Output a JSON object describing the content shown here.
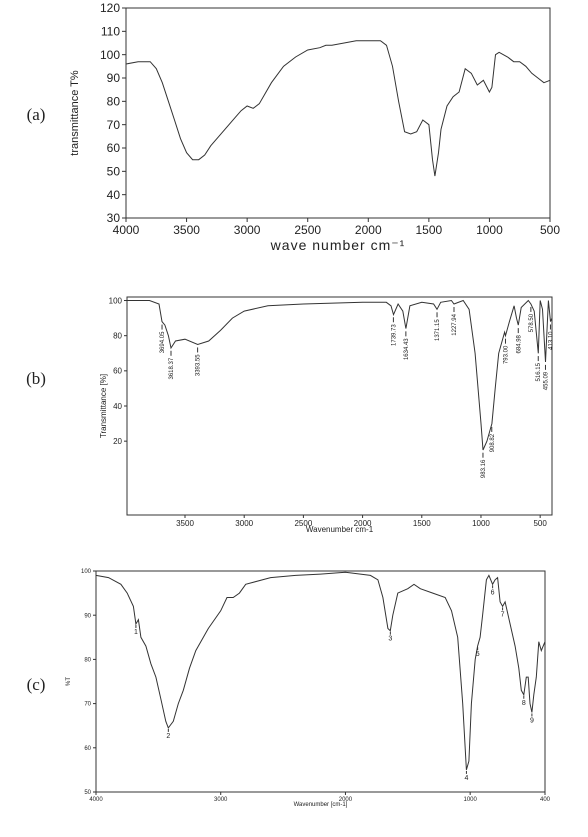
{
  "chart_data": [
    {
      "type": "line",
      "panel_label": "(a)",
      "xlabel": "wave number cm⁻¹",
      "ylabel": "transmittance T%",
      "color": "#333333",
      "xlim": [
        4000,
        500
      ],
      "xticks": [
        4000,
        3500,
        3000,
        2500,
        2000,
        1500,
        1000,
        500
      ],
      "ylim": [
        30,
        120
      ],
      "yticks": [
        30,
        40,
        50,
        60,
        70,
        80,
        90,
        100,
        110,
        120
      ],
      "x": [
        4000,
        3900,
        3800,
        3750,
        3700,
        3650,
        3600,
        3550,
        3500,
        3450,
        3400,
        3350,
        3300,
        3200,
        3100,
        3050,
        3000,
        2950,
        2900,
        2800,
        2700,
        2600,
        2500,
        2400,
        2350,
        2300,
        2200,
        2100,
        2000,
        1900,
        1850,
        1800,
        1750,
        1700,
        1650,
        1600,
        1550,
        1500,
        1470,
        1450,
        1420,
        1400,
        1350,
        1300,
        1250,
        1200,
        1150,
        1100,
        1050,
        1000,
        980,
        950,
        920,
        850,
        800,
        750,
        700,
        650,
        600,
        550,
        500
      ],
      "values": [
        96,
        97,
        97,
        94,
        88,
        80,
        72,
        64,
        58,
        55,
        55,
        57,
        61,
        67,
        73,
        76,
        78,
        77,
        79,
        88,
        95,
        99,
        102,
        103,
        104,
        104,
        105,
        106,
        106,
        106,
        104,
        95,
        80,
        67,
        66,
        67,
        72,
        70,
        55,
        48,
        58,
        68,
        78,
        82,
        84,
        94,
        92,
        87,
        89,
        84,
        86,
        100,
        101,
        99,
        97,
        97,
        95,
        92,
        90,
        88,
        89
      ]
    },
    {
      "type": "line",
      "panel_label": "(b)",
      "xlabel": "Wavenumber cm-1",
      "ylabel": "Transmittance [%]",
      "color": "#333333",
      "xlim": [
        3990,
        400
      ],
      "xticks": [
        3500,
        3000,
        2500,
        2000,
        1500,
        1000,
        500
      ],
      "ylim": [
        -22,
        102
      ],
      "yticks": [
        20,
        40,
        60,
        80,
        100
      ],
      "x": [
        3990,
        3800,
        3720,
        3694,
        3670,
        3640,
        3618,
        3580,
        3500,
        3393,
        3300,
        3200,
        3100,
        3000,
        2800,
        2500,
        2000,
        1800,
        1760,
        1739,
        1700,
        1660,
        1634,
        1600,
        1500,
        1400,
        1371,
        1340,
        1250,
        1228,
        1150,
        1100,
        1050,
        1000,
        983,
        950,
        908,
        880,
        850,
        800,
        793,
        760,
        720,
        700,
        685,
        660,
        600,
        578,
        550,
        530,
        516,
        500,
        480,
        455,
        430,
        413,
        400
      ],
      "values": [
        100,
        100,
        98,
        88,
        86,
        80,
        73,
        77,
        78,
        75,
        77,
        83,
        90,
        94,
        97,
        98,
        99,
        99,
        97,
        92,
        98,
        94,
        84,
        97,
        99,
        98,
        95,
        99,
        100,
        98,
        100,
        95,
        70,
        30,
        15,
        20,
        30,
        50,
        70,
        82,
        80,
        88,
        97,
        90,
        86,
        96,
        100,
        98,
        94,
        80,
        70,
        100,
        95,
        65,
        100,
        88,
        90
      ],
      "annotations": [
        {
          "x": 3694.05,
          "label": "3694.05"
        },
        {
          "x": 3618.37,
          "label": "3618.37"
        },
        {
          "x": 3393.55,
          "label": "3393.55"
        },
        {
          "x": 1739.73,
          "label": "1739.73"
        },
        {
          "x": 1634.43,
          "label": "1634.43"
        },
        {
          "x": 1371.15,
          "label": "1371.15"
        },
        {
          "x": 1227.94,
          "label": "1227.94"
        },
        {
          "x": 983.16,
          "label": "983.16"
        },
        {
          "x": 908.82,
          "label": "908.82"
        },
        {
          "x": 793.0,
          "label": "793.00"
        },
        {
          "x": 684.98,
          "label": "684.98"
        },
        {
          "x": 578.5,
          "label": "578.50"
        },
        {
          "x": 516.15,
          "label": "516.15"
        },
        {
          "x": 455.09,
          "label": "455.09"
        },
        {
          "x": 413.1,
          "label": "413.10"
        }
      ]
    },
    {
      "type": "line",
      "panel_label": "(c)",
      "xlabel": "Wavenumber [cm-1]",
      "ylabel": "%T",
      "color": "#333333",
      "xlim": [
        4000,
        400
      ],
      "xticks": [
        4000,
        3000,
        2000,
        1000,
        400
      ],
      "ylim": [
        50,
        100
      ],
      "yticks": [
        50,
        60,
        70,
        80,
        90,
        100
      ],
      "x": [
        4000,
        3900,
        3800,
        3750,
        3700,
        3680,
        3660,
        3640,
        3600,
        3560,
        3520,
        3480,
        3440,
        3420,
        3380,
        3340,
        3300,
        3250,
        3200,
        3100,
        3000,
        2950,
        2900,
        2850,
        2800,
        2600,
        2400,
        2200,
        2000,
        1800,
        1740,
        1700,
        1660,
        1640,
        1620,
        1580,
        1500,
        1450,
        1400,
        1300,
        1200,
        1150,
        1100,
        1060,
        1030,
        1010,
        990,
        960,
        940,
        920,
        900,
        870,
        850,
        820,
        800,
        780,
        760,
        740,
        720,
        680,
        640,
        610,
        590,
        570,
        550,
        535,
        520,
        505,
        490,
        470,
        450,
        430,
        400
      ],
      "values": [
        99,
        98.5,
        97,
        95,
        92,
        88,
        89,
        85,
        83,
        79,
        76,
        71,
        66,
        64.5,
        66,
        70,
        73,
        78,
        82,
        87,
        91,
        94,
        94,
        95,
        97,
        98.5,
        99,
        99.3,
        99.7,
        99,
        98,
        94,
        87,
        86.5,
        90,
        95,
        96,
        97,
        96,
        95,
        94,
        91,
        85,
        70,
        55,
        57,
        70,
        80,
        83,
        85,
        90,
        98,
        99,
        97,
        98,
        98.5,
        93,
        92,
        93,
        88,
        83,
        78,
        73,
        72,
        76,
        76,
        70,
        68,
        72,
        76,
        84,
        82,
        84
      ],
      "annotations": [
        {
          "x": 3680,
          "label": "1"
        },
        {
          "x": 3420,
          "label": "2"
        },
        {
          "x": 1640,
          "label": "3"
        },
        {
          "x": 1030,
          "label": "4"
        },
        {
          "x": 940,
          "label": "5"
        },
        {
          "x": 820,
          "label": "6"
        },
        {
          "x": 740,
          "label": "7"
        },
        {
          "x": 570,
          "label": "8"
        },
        {
          "x": 505,
          "label": "9"
        }
      ]
    }
  ]
}
